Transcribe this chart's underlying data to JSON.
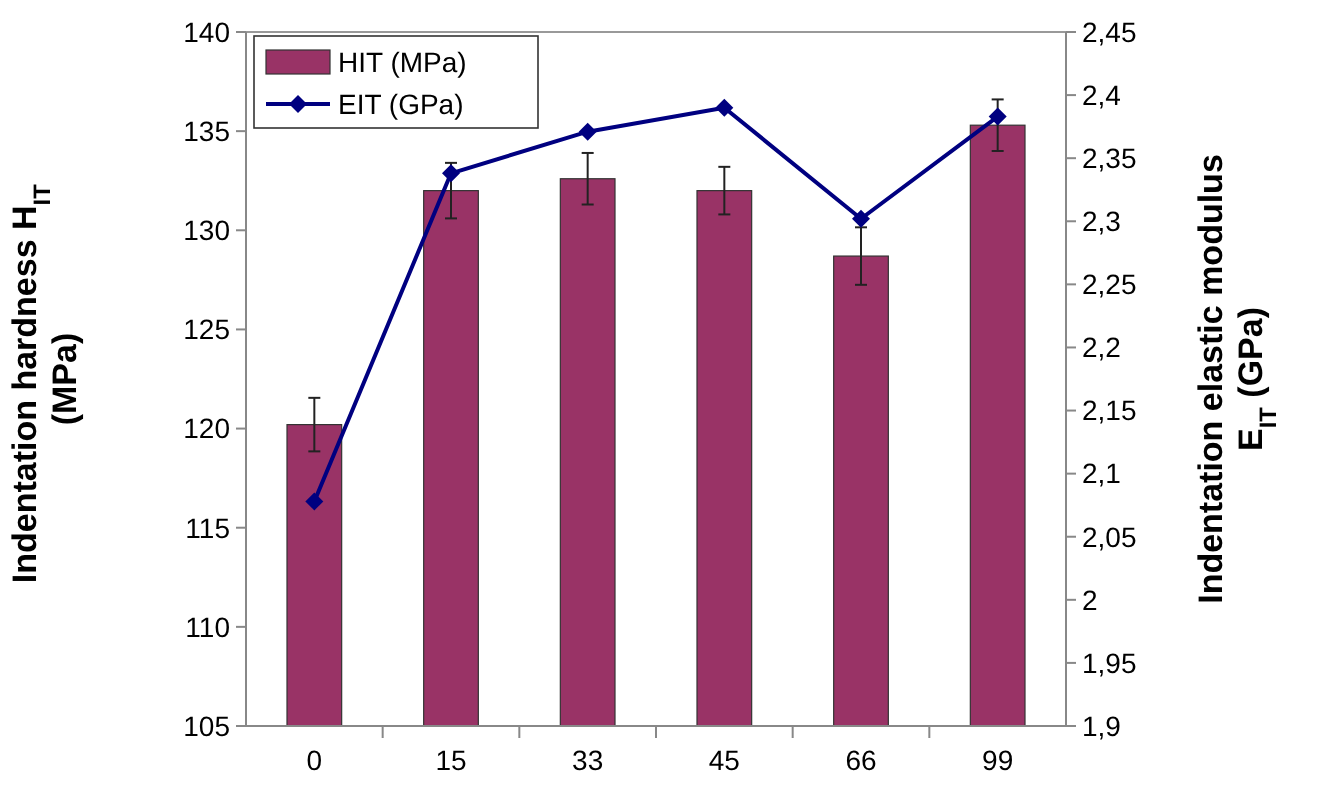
{
  "chart_data": {
    "type": "bar",
    "ylabel": "Indentation hardness H$_{IT}$ (MPa)",
    "y2label": "Indentation elastic modulus E$_{IT}$ (GPa)",
    "categories": [
      "0",
      "15",
      "33",
      "45",
      "66",
      "99"
    ],
    "series": [
      {
        "name": "HIT (MPa)",
        "color": "#993366",
        "values": [
          120.2,
          132.0,
          132.6,
          132.0,
          128.7,
          135.3
        ],
        "errors": [
          1.35,
          1.4,
          1.3,
          1.2,
          1.45,
          1.3
        ]
      },
      {
        "name": "EIT (GPa)",
        "type": "line",
        "axis": "y2",
        "color": "#000080",
        "values": [
          2.078,
          2.338,
          2.371,
          2.39,
          2.302,
          2.383
        ]
      }
    ],
    "ylim": [
      105,
      140
    ],
    "yticks": [
      105,
      110,
      115,
      120,
      125,
      130,
      135,
      140
    ],
    "y2lim": [
      1.9,
      2.45
    ],
    "y2ticks": [
      {
        "value": 1.9,
        "label": "1,9"
      },
      {
        "value": 1.95,
        "label": "1,95"
      },
      {
        "value": 2,
        "label": "2"
      },
      {
        "value": 2.05,
        "label": "2,05"
      },
      {
        "value": 2.1,
        "label": "2,1"
      },
      {
        "value": 2.15,
        "label": "2,15"
      },
      {
        "value": 2.2,
        "label": "2,2"
      },
      {
        "value": 2.25,
        "label": "2,25"
      },
      {
        "value": 2.3,
        "label": "2,3"
      },
      {
        "value": 2.35,
        "label": "2,35"
      },
      {
        "value": 2.4,
        "label": "2,4"
      },
      {
        "value": 2.45,
        "label": "2,45"
      }
    ],
    "legend": "top left",
    "marker": "diamond",
    "grid": false
  }
}
